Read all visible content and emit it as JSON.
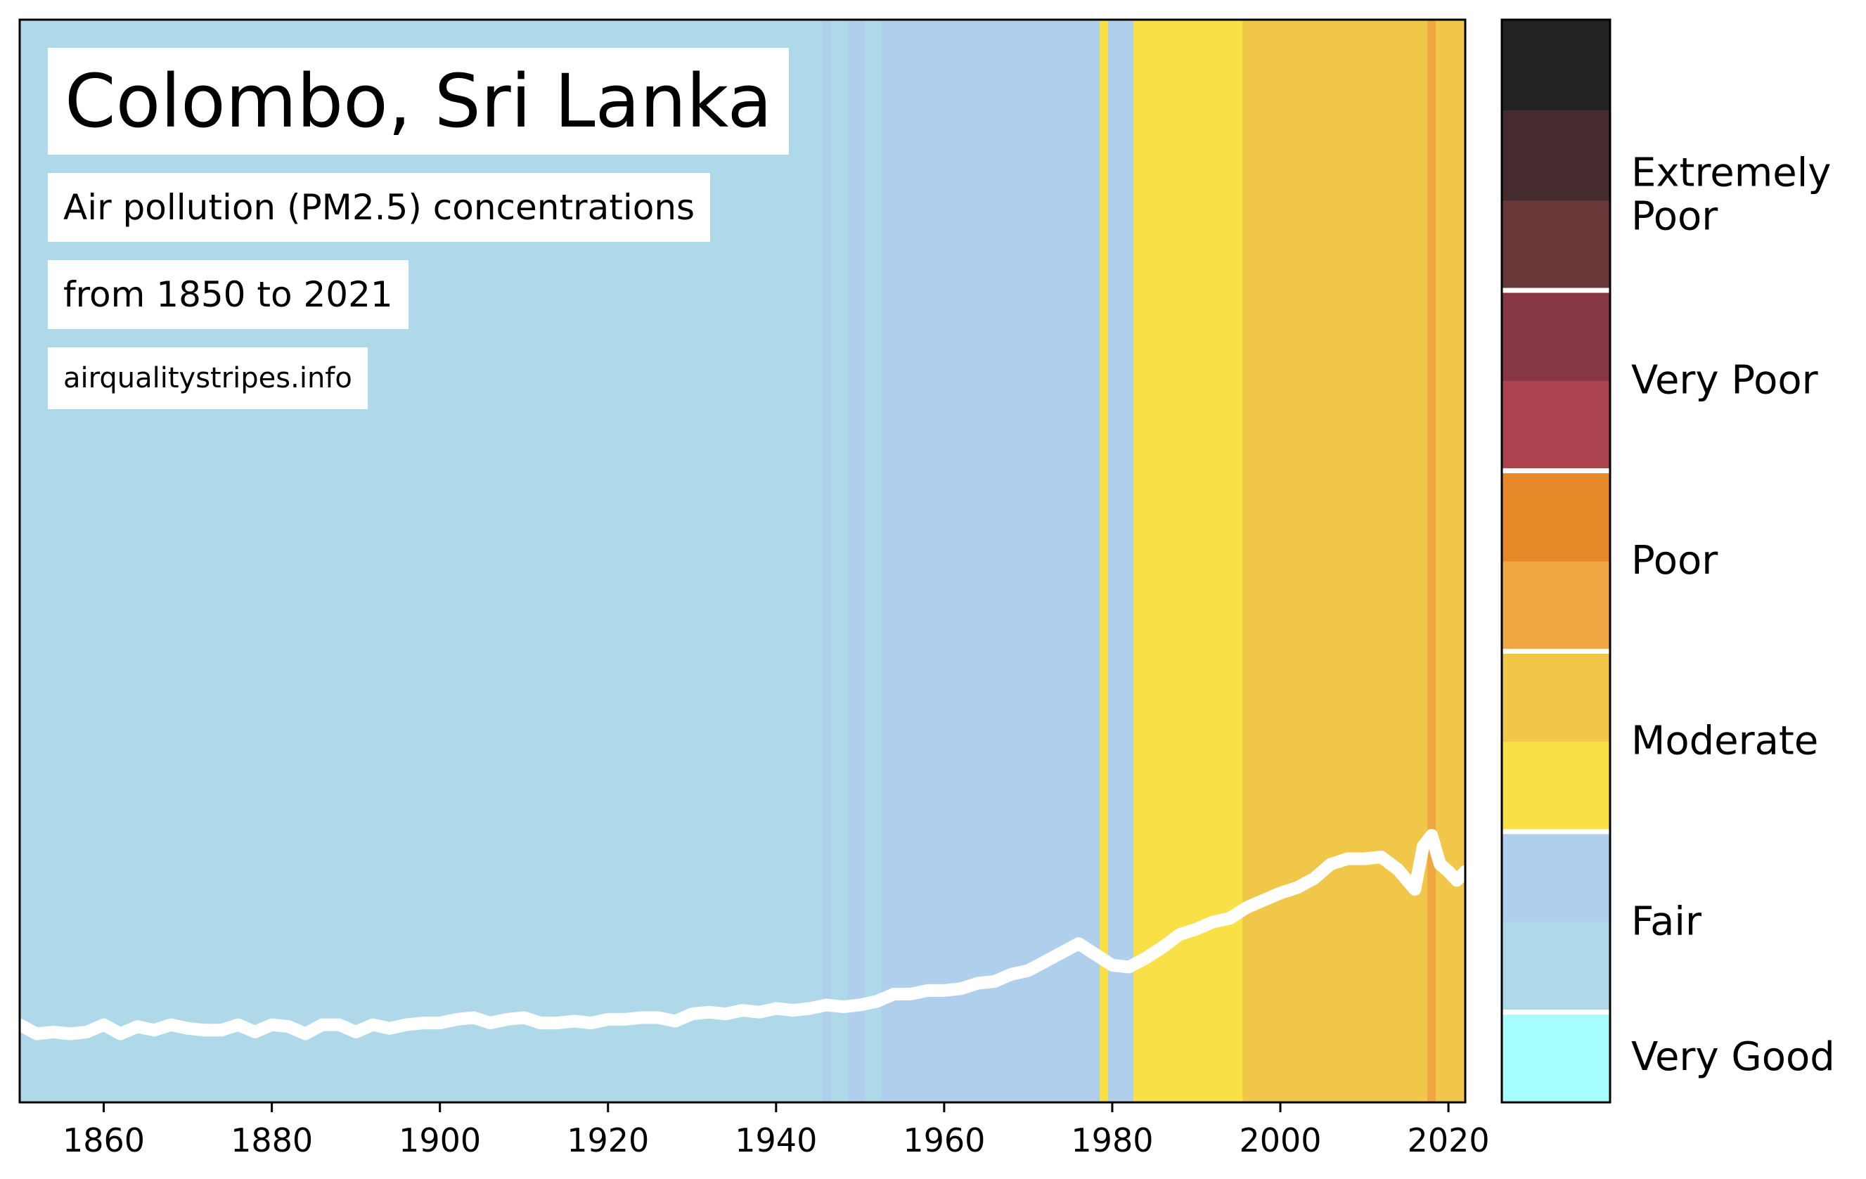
{
  "title": "Colombo, Sri Lanka",
  "subtitle_line1": "Air pollution (PM2.5) concentrations",
  "subtitle_line2": "from 1850 to 2021",
  "source": "airqualitystripes.info",
  "chart_data": {
    "type": "area",
    "x_ticks": [
      "1860",
      "1880",
      "1900",
      "1920",
      "1940",
      "1960",
      "1980",
      "2000",
      "2020"
    ],
    "xlim": [
      1850,
      2022
    ],
    "ylim": [
      0,
      60
    ],
    "grid": false,
    "stripes": [
      {
        "start": 1850,
        "end": 1945.5,
        "category": "Good"
      },
      {
        "start": 1945.5,
        "end": 1946.5,
        "category": "Fair"
      },
      {
        "start": 1946.5,
        "end": 1948.5,
        "category": "Good"
      },
      {
        "start": 1948.5,
        "end": 1950.5,
        "category": "Fair"
      },
      {
        "start": 1950.5,
        "end": 1952.5,
        "category": "Good"
      },
      {
        "start": 1952.5,
        "end": 1978.5,
        "category": "Fair"
      },
      {
        "start": 1978.5,
        "end": 1979.5,
        "category": "Moderate"
      },
      {
        "start": 1979.5,
        "end": 1982.5,
        "category": "Fair"
      },
      {
        "start": 1982.5,
        "end": 1995.5,
        "category": "Moderate"
      },
      {
        "start": 1995.5,
        "end": 2017.5,
        "category": "Moderate (upper)"
      },
      {
        "start": 2017.5,
        "end": 2018.5,
        "category": "Poor"
      },
      {
        "start": 2018.5,
        "end": 2022,
        "category": "Moderate (upper)"
      }
    ],
    "series": [
      {
        "x": [
          1850,
          1852,
          1854,
          1856,
          1858,
          1860,
          1862,
          1864,
          1866,
          1868,
          1870,
          1872,
          1874,
          1876,
          1878,
          1880,
          1882,
          1884,
          1886,
          1888,
          1890,
          1892,
          1894,
          1896,
          1898,
          1900,
          1902,
          1904,
          1906,
          1908,
          1910,
          1912,
          1914,
          1916,
          1918,
          1920,
          1922,
          1924,
          1926,
          1928,
          1930,
          1932,
          1934,
          1936,
          1938,
          1940,
          1942,
          1944,
          1946,
          1948,
          1950,
          1952,
          1954,
          1956,
          1958,
          1960,
          1962,
          1964,
          1966,
          1968,
          1970,
          1972,
          1974,
          1976,
          1978,
          1980,
          1982,
          1984,
          1986,
          1988,
          1990,
          1992,
          1994,
          1996,
          1998,
          2000,
          2002,
          2004,
          2006,
          2008,
          2010,
          2012,
          2014,
          2016,
          2017,
          2018,
          2019,
          2020,
          2021,
          2022
        ],
        "values": [
          4.3,
          3.8,
          3.9,
          3.8,
          3.9,
          4.3,
          3.8,
          4.2,
          4.0,
          4.3,
          4.1,
          4.0,
          4.0,
          4.3,
          3.9,
          4.3,
          4.2,
          3.8,
          4.3,
          4.3,
          3.9,
          4.3,
          4.1,
          4.3,
          4.4,
          4.4,
          4.6,
          4.7,
          4.4,
          4.6,
          4.7,
          4.4,
          4.4,
          4.5,
          4.4,
          4.6,
          4.6,
          4.7,
          4.7,
          4.5,
          4.9,
          5.0,
          4.9,
          5.1,
          5.0,
          5.2,
          5.1,
          5.2,
          5.4,
          5.3,
          5.4,
          5.6,
          6.0,
          6.0,
          6.2,
          6.2,
          6.3,
          6.6,
          6.7,
          7.1,
          7.3,
          7.8,
          8.3,
          8.8,
          8.2,
          7.6,
          7.5,
          8.0,
          8.6,
          9.3,
          9.6,
          10.0,
          10.2,
          10.8,
          11.2,
          11.6,
          11.9,
          12.4,
          13.2,
          13.5,
          13.5,
          13.6,
          12.9,
          11.8,
          14.2,
          14.8,
          13.2,
          12.8,
          12.3,
          12.8
        ],
        "color": "#ffffff"
      }
    ],
    "colorbar": {
      "labels": [
        "Very Good",
        "Fair",
        "Moderate",
        "Poor",
        "Very Poor",
        "Extremely Poor"
      ],
      "bands": [
        "#a6fefe",
        "#afd9e9",
        "#b0cfec",
        "#f8e046",
        "#f1c74a",
        "#f0a642",
        "#e78828",
        "#ad4550",
        "#883845",
        "#683839",
        "#452b2e",
        "#222222"
      ]
    },
    "colors": {
      "Good": "#afd9e9",
      "Fair": "#b0cfec",
      "Moderate": "#f8e046",
      "Moderate (upper)": "#f1c74a",
      "Poor": "#f0a642"
    }
  }
}
